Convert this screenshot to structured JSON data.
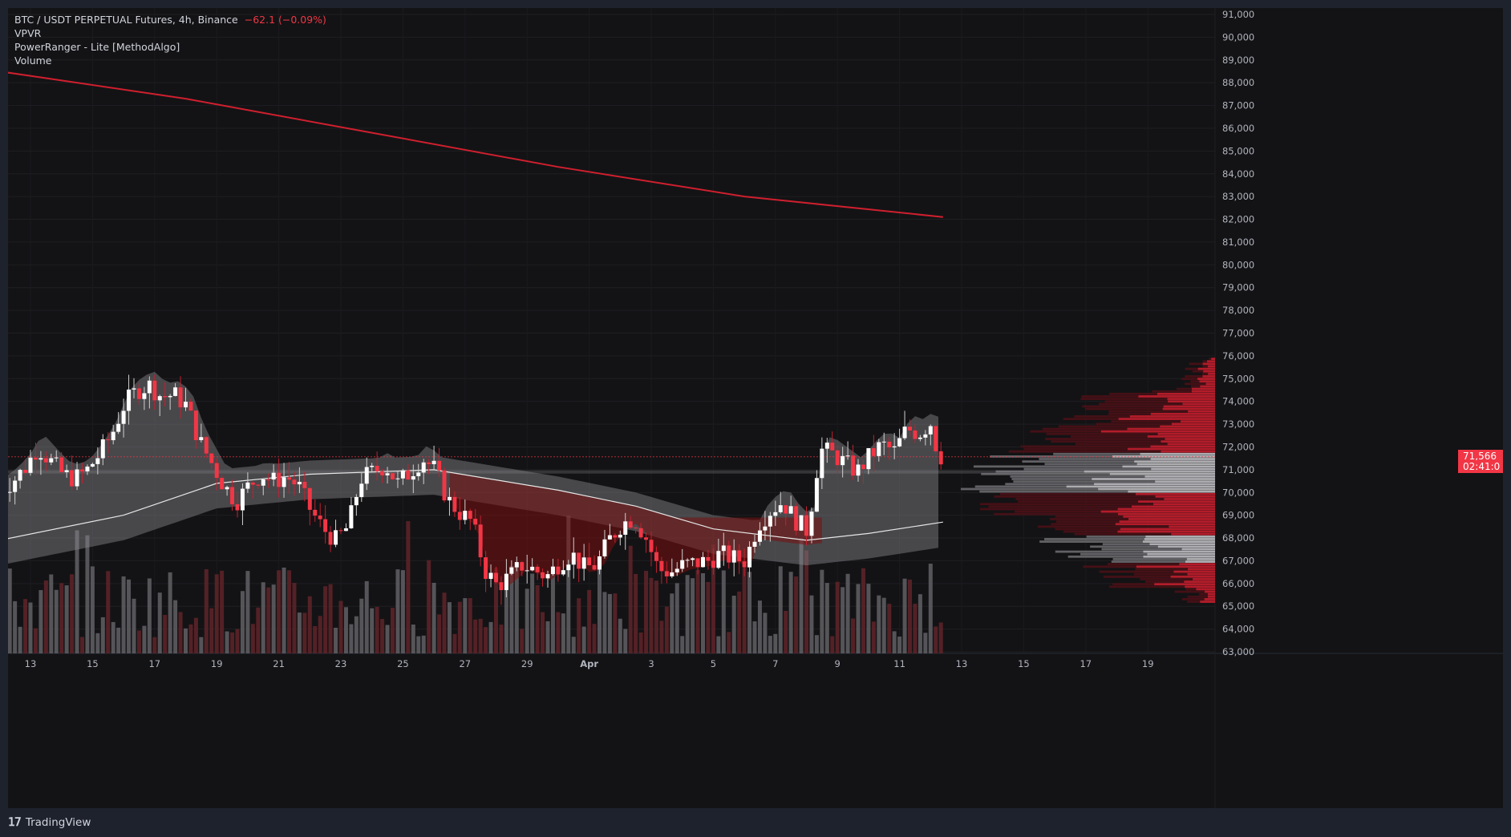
{
  "header": {
    "title": "BTC / USDT PERPETUAL Futures, 4h, Binance",
    "change": "−62.1 (−0.09%)",
    "indicators": [
      "VPVR",
      "PowerRanger - Lite [MethodAlgo]",
      "Volume"
    ]
  },
  "footer": {
    "brand": "TradingView"
  },
  "current_price": {
    "price": "71,566",
    "countdown": "02:41:0"
  },
  "colors": {
    "background": "#131315",
    "frame": "#1e222d",
    "bull": "#ffffff",
    "bear": "#f23645",
    "line_red": "#d01f2e",
    "text": "#d1d4dc"
  },
  "chart_data": {
    "type": "candlestick",
    "symbol": "BTC / USDT PERPETUAL Futures",
    "interval": "4h",
    "exchange": "Binance",
    "ylim": [
      62600,
      91200
    ],
    "y_ticks": [
      "91,000",
      "90,000",
      "89,000",
      "88,000",
      "87,000",
      "86,000",
      "85,000",
      "84,000",
      "83,000",
      "82,000",
      "81,000",
      "80,000",
      "79,000",
      "78,000",
      "77,000",
      "76,000",
      "75,000",
      "74,000",
      "73,000",
      "72,000",
      "71,000",
      "70,000",
      "69,000",
      "68,000",
      "67,000",
      "66,000",
      "65,000",
      "64,000",
      "63,000"
    ],
    "x_ticks": [
      "13",
      "15",
      "17",
      "19",
      "21",
      "23",
      "25",
      "27",
      "29",
      "Apr",
      "3",
      "5",
      "7",
      "9",
      "11",
      "13",
      "15",
      "17",
      "19"
    ],
    "price_series": [
      {
        "day": 12.2,
        "price": 70100
      },
      {
        "day": 12.6,
        "price": 70500
      },
      {
        "day": 13.0,
        "price": 71100
      },
      {
        "day": 13.4,
        "price": 72000
      },
      {
        "day": 13.8,
        "price": 71400
      },
      {
        "day": 14.2,
        "price": 70800
      },
      {
        "day": 14.6,
        "price": 70600
      },
      {
        "day": 15.0,
        "price": 71000
      },
      {
        "day": 15.4,
        "price": 71700
      },
      {
        "day": 15.8,
        "price": 72600
      },
      {
        "day": 16.2,
        "price": 73900
      },
      {
        "day": 16.6,
        "price": 74500
      },
      {
        "day": 17.0,
        "price": 74700
      },
      {
        "day": 17.4,
        "price": 74200
      },
      {
        "day": 17.8,
        "price": 74300
      },
      {
        "day": 18.2,
        "price": 73800
      },
      {
        "day": 18.6,
        "price": 72300
      },
      {
        "day": 19.0,
        "price": 71300
      },
      {
        "day": 19.4,
        "price": 70300
      },
      {
        "day": 19.8,
        "price": 69600
      },
      {
        "day": 20.2,
        "price": 70300
      },
      {
        "day": 20.6,
        "price": 70800
      },
      {
        "day": 21.0,
        "price": 70500
      },
      {
        "day": 21.4,
        "price": 70700
      },
      {
        "day": 21.8,
        "price": 70300
      },
      {
        "day": 22.2,
        "price": 69200
      },
      {
        "day": 22.6,
        "price": 68400
      },
      {
        "day": 23.0,
        "price": 67900
      },
      {
        "day": 23.4,
        "price": 68500
      },
      {
        "day": 23.8,
        "price": 70600
      },
      {
        "day": 24.2,
        "price": 70900
      },
      {
        "day": 24.6,
        "price": 71200
      },
      {
        "day": 25.0,
        "price": 70400
      },
      {
        "day": 25.4,
        "price": 70900
      },
      {
        "day": 25.8,
        "price": 71500
      },
      {
        "day": 26.2,
        "price": 71000
      },
      {
        "day": 26.6,
        "price": 69700
      },
      {
        "day": 27.0,
        "price": 69100
      },
      {
        "day": 27.4,
        "price": 68700
      },
      {
        "day": 27.8,
        "price": 66600
      },
      {
        "day": 28.2,
        "price": 65900
      },
      {
        "day": 28.6,
        "price": 66300
      },
      {
        "day": 29.0,
        "price": 66800
      },
      {
        "day": 29.4,
        "price": 66600
      },
      {
        "day": 29.8,
        "price": 66300
      },
      {
        "day": 30.2,
        "price": 66900
      },
      {
        "day": 30.6,
        "price": 67300
      },
      {
        "day": 31.0,
        "price": 66700
      },
      {
        "day": 31.4,
        "price": 66800
      },
      {
        "day": 31.8,
        "price": 67900
      },
      {
        "day": 32.2,
        "price": 68600
      },
      {
        "day": 32.6,
        "price": 68900
      },
      {
        "day": 33.0,
        "price": 68000
      },
      {
        "day": 33.4,
        "price": 66600
      },
      {
        "day": 33.8,
        "price": 66500
      },
      {
        "day": 34.2,
        "price": 66800
      },
      {
        "day": 34.6,
        "price": 66900
      },
      {
        "day": 35.0,
        "price": 67000
      },
      {
        "day": 35.4,
        "price": 67300
      },
      {
        "day": 35.8,
        "price": 67100
      },
      {
        "day": 36.2,
        "price": 67000
      },
      {
        "day": 36.6,
        "price": 68600
      },
      {
        "day": 37.0,
        "price": 69200
      },
      {
        "day": 37.4,
        "price": 69600
      },
      {
        "day": 37.8,
        "price": 68800
      },
      {
        "day": 38.2,
        "price": 68300
      },
      {
        "day": 38.6,
        "price": 71900
      },
      {
        "day": 39.0,
        "price": 71700
      },
      {
        "day": 39.4,
        "price": 71300
      },
      {
        "day": 39.8,
        "price": 70900
      },
      {
        "day": 40.2,
        "price": 71600
      },
      {
        "day": 40.6,
        "price": 72100
      },
      {
        "day": 41.0,
        "price": 71800
      },
      {
        "day": 41.4,
        "price": 72800
      },
      {
        "day": 41.8,
        "price": 72600
      },
      {
        "day": 42.2,
        "price": 73100
      },
      {
        "day": 42.4,
        "price": 71600
      }
    ],
    "slow_line": [
      {
        "day": 12.0,
        "price": 88500
      },
      {
        "day": 18.0,
        "price": 87300
      },
      {
        "day": 24.0,
        "price": 85800
      },
      {
        "day": 30.0,
        "price": 84300
      },
      {
        "day": 36.0,
        "price": 83000
      },
      {
        "day": 42.4,
        "price": 82100
      }
    ],
    "ma_line": [
      {
        "day": 12.0,
        "price": 67900
      },
      {
        "day": 16.0,
        "price": 69000
      },
      {
        "day": 19.0,
        "price": 70400
      },
      {
        "day": 22.0,
        "price": 70800
      },
      {
        "day": 26.0,
        "price": 71000
      },
      {
        "day": 30.0,
        "price": 70100
      },
      {
        "day": 32.5,
        "price": 69400
      },
      {
        "day": 35.0,
        "price": 68400
      },
      {
        "day": 38.0,
        "price": 67900
      },
      {
        "day": 40.0,
        "price": 68200
      },
      {
        "day": 42.4,
        "price": 68700
      }
    ]
  }
}
